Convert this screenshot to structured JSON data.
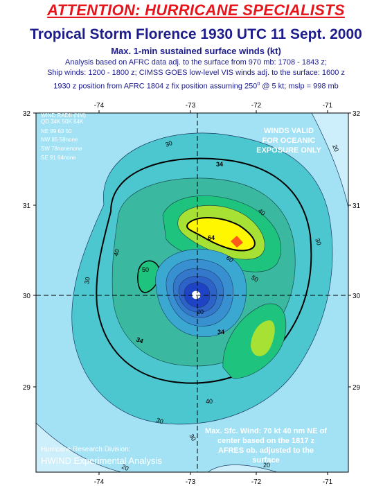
{
  "header": {
    "attention": "ATTENTION: HURRICANE SPECIALISTS",
    "title": "Tropical Storm Florence 1930 UTC 11 Sept. 2000",
    "subtitle": "Max. 1-min sustained surface winds (kt)",
    "note1": "Analysis based on AFRC data adj. to the surface from 970 mb: 1708 - 1843 z;",
    "note2": "Ship winds: 1200 - 1800 z; CIMSS GOES low-level VIS winds adj. to the surface: 1600 z",
    "note3_pre": "1930 z position from AFRC 1804 z fix position assuming 250",
    "note3_sup": "0",
    "note3_post": " @ 5 kt; mslp = 998 mb"
  },
  "axes": {
    "lon_ticks": [
      "-74",
      "-73",
      "-72",
      "-71"
    ],
    "lat_ticks": [
      "32",
      "31",
      "30",
      "29"
    ]
  },
  "wind_radii": {
    "title": "WIND RADII (NM)",
    "columns": "QD 34K 50K 64K",
    "rows": [
      "NE  89  63  50",
      "NW  85  58none",
      "SW  78nonenone",
      "SE  91  64none"
    ]
  },
  "validity": [
    "WINDS VALID",
    "FOR OCEANIC",
    "EXPOSURE ONLY"
  ],
  "max_wind_note": [
    "Max. Sfc. Wind: 70 kt 40 nm NE of",
    "center based on the 1817 z",
    "AFRES  ob. adjusted to the",
    "surface"
  ],
  "credit": {
    "line1": "Hurricane Research Division:",
    "line2": "HWIND Experimental Analysis"
  },
  "contour_labels": {
    "c30a": "30",
    "c30b": "30",
    "c30c": "30",
    "c30d": "30",
    "c30e": "30",
    "c20a": "20",
    "c20b": "20",
    "c20c": "20",
    "c34a": "34",
    "c34b": "34",
    "c40a": "40",
    "c40b": "40",
    "c40c": "40",
    "c50a": "50",
    "c50b": "50",
    "c60": "60",
    "c64": "64",
    "c30f": "30",
    "c20d": "20"
  },
  "colors": {
    "cat20": "#cdeefb",
    "cat30": "#a3e2f4",
    "cat40": "#4cc6cf",
    "cat50": "#1ec37e",
    "cat60": "#a6e134",
    "cat64": "#fff700",
    "max": "#ff5a1c",
    "eye_blue": "#1f43c5",
    "title_red": "#e8141c",
    "title_blue": "#1c1c8c"
  }
}
